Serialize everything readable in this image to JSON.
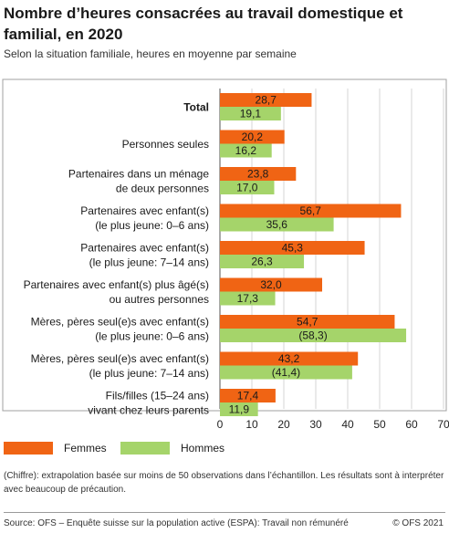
{
  "title": "Nombre d’heures consacrées au travail domestique et familial, en 2020",
  "subtitle": "Selon la situation familiale, heures en moyenne par semaine",
  "legend": {
    "femmes": "Femmes",
    "hommes": "Hommes"
  },
  "colors": {
    "femmes": "#f06414",
    "hommes": "#a5d46a",
    "grid": "#d4d4d4",
    "panel_border": "#a0a0a0"
  },
  "note": "(Chiffre): extrapolation basée sur moins de 50 observations dans l’échantillon. Les résultats sont à interpréter avec beaucoup de précaution.",
  "source": "Source: OFS – Enquête suisse sur la population active (ESPA): Travail non rémunéré",
  "copyright": "© OFS 2021",
  "chart_data": {
    "type": "bar",
    "orientation": "horizontal",
    "xlim": [
      0,
      70
    ],
    "xticks": [
      "0",
      "10",
      "20",
      "30",
      "40",
      "50",
      "60",
      "70"
    ],
    "grid": true,
    "legend_position": "bottom",
    "categories": [
      {
        "lines": [
          "Total"
        ],
        "bold": true
      },
      {
        "lines": [
          "Personnes seules"
        ]
      },
      {
        "lines": [
          "Partenaires dans un ménage",
          "de deux personnes"
        ]
      },
      {
        "lines": [
          "Partenaires avec enfant(s)",
          "(le plus jeune: 0–6 ans)"
        ]
      },
      {
        "lines": [
          "Partenaires avec enfant(s)",
          "(le plus jeune: 7–14 ans)"
        ]
      },
      {
        "lines": [
          "Partenaires avec enfant(s) plus âgé(s)",
          "ou autres personnes"
        ]
      },
      {
        "lines": [
          "Mères, pères seul(e)s avec enfant(s)",
          "(le plus jeune: 0–6 ans)"
        ]
      },
      {
        "lines": [
          "Mères, pères seul(e)s avec enfant(s)",
          "(le plus jeune: 7–14 ans)"
        ]
      },
      {
        "lines": [
          "Fils/filles (15–24 ans)",
          "vivant chez leurs parents"
        ]
      }
    ],
    "series": [
      {
        "name": "Femmes",
        "values": [
          28.7,
          20.2,
          23.8,
          56.7,
          45.3,
          32.0,
          54.7,
          43.2,
          17.4
        ],
        "labels": [
          "28,7",
          "20,2",
          "23,8",
          "56,7",
          "45,3",
          "32,0",
          "54,7",
          "43,2",
          "17,4"
        ]
      },
      {
        "name": "Hommes",
        "values": [
          19.1,
          16.2,
          17.0,
          35.6,
          26.3,
          17.3,
          58.3,
          41.4,
          11.9
        ],
        "labels": [
          "19,1",
          "16,2",
          "17,0",
          "35,6",
          "26,3",
          "17,3",
          "(58,3)",
          "(41,4)",
          "11,9"
        ]
      }
    ]
  }
}
